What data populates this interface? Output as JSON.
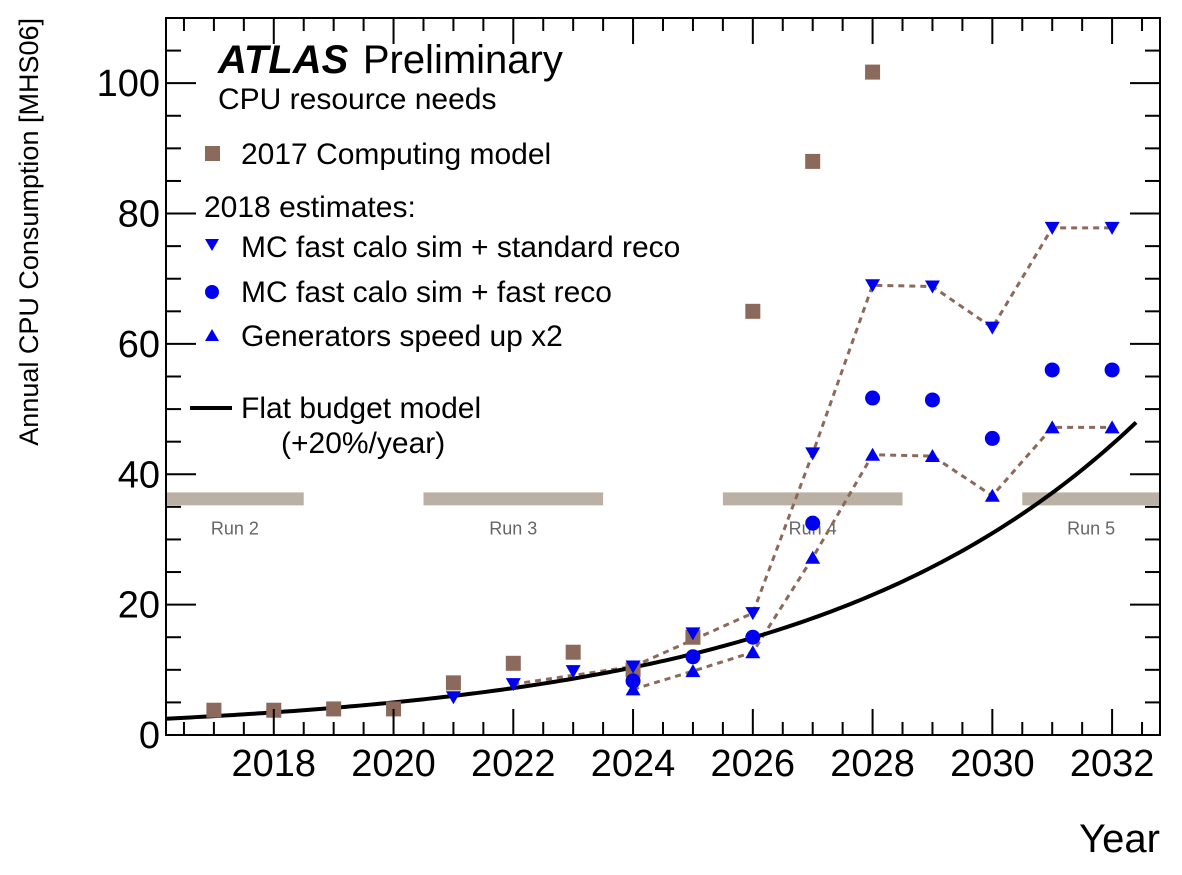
{
  "chart_data": {
    "type": "scatter",
    "title": "ATLAS",
    "title_suffix": "Preliminary",
    "subtitle": "CPU resource needs",
    "xlabel": "Year",
    "ylabel": "Annual CPU Consumption [MHS06]",
    "xlim": [
      2016.2,
      2032.8
    ],
    "ylim": [
      0,
      110
    ],
    "xticks": [
      2018,
      2020,
      2022,
      2024,
      2026,
      2028,
      2030,
      2032
    ],
    "yticks": [
      0,
      20,
      40,
      60,
      80,
      100
    ],
    "grid": false,
    "legend_header": "2018 estimates:",
    "series": [
      {
        "name": "2017 Computing model",
        "marker": "square",
        "color": "#8b6a5c",
        "x": [
          2017,
          2018,
          2019,
          2020,
          2021,
          2022,
          2023,
          2024,
          2025,
          2026,
          2027,
          2028
        ],
        "y": [
          3.8,
          3.8,
          4.0,
          4.0,
          8.0,
          11.0,
          12.7,
          10.0,
          15.0,
          65.0,
          88.0,
          101.7
        ]
      },
      {
        "name": "MC fast calo sim + standard reco",
        "marker": "triangle-down",
        "color": "#0000ee",
        "x": [
          2021,
          2022,
          2023,
          2024,
          2025,
          2026,
          2027,
          2028,
          2029,
          2030,
          2031,
          2032
        ],
        "y": [
          5.8,
          7.8,
          9.8,
          10.5,
          15.6,
          18.7,
          43.2,
          69.0,
          68.8,
          62.5,
          77.8,
          77.8
        ]
      },
      {
        "name": "MC fast calo sim + fast reco",
        "marker": "circle",
        "color": "#0000ee",
        "x": [
          2024,
          2025,
          2026,
          2027,
          2028,
          2029,
          2030,
          2031,
          2032
        ],
        "y": [
          8.3,
          12.0,
          15.0,
          32.5,
          51.7,
          51.4,
          45.5,
          56.0,
          56.0
        ]
      },
      {
        "name": "Generators speed up x2",
        "marker": "triangle-up",
        "color": "#0000ee",
        "x": [
          2024,
          2025,
          2026,
          2027,
          2028,
          2029,
          2030,
          2031,
          2032
        ],
        "y": [
          7.0,
          9.8,
          12.7,
          27.2,
          43.0,
          42.8,
          36.7,
          47.2,
          47.2
        ]
      }
    ],
    "dashed_connectors": {
      "color": "#8b6a5c",
      "lines": [
        {
          "x": [
            2022,
            2024,
            2026,
            2027,
            2028,
            2029,
            2030,
            2031,
            2032
          ],
          "y": [
            7.8,
            10.5,
            18.7,
            43.2,
            69.0,
            68.8,
            62.5,
            77.8,
            77.8
          ]
        },
        {
          "x": [
            2024,
            2025,
            2026,
            2027,
            2028,
            2029,
            2030,
            2031,
            2032
          ],
          "y": [
            7.0,
            9.8,
            12.7,
            27.2,
            43.0,
            42.8,
            36.7,
            47.2,
            47.2
          ]
        }
      ]
    },
    "flat_budget": {
      "name": "Flat budget model",
      "name_line2": "(+20%/year)",
      "color": "#000000",
      "base_year": 2020,
      "base_value": 5.0,
      "growth_rate": 0.2,
      "x_start": 2016.2,
      "x_end": 2032.4
    },
    "run_periods": {
      "color": "#bbb0a4",
      "y": 36.3,
      "runs": [
        {
          "label": "Run 2",
          "start": 2016.2,
          "end": 2018.5
        },
        {
          "label": "Run 3",
          "start": 2020.5,
          "end": 2023.5
        },
        {
          "label": "Run 4",
          "start": 2025.5,
          "end": 2028.5
        },
        {
          "label": "Run 5",
          "start": 2030.5,
          "end": 2032.8
        }
      ]
    }
  }
}
